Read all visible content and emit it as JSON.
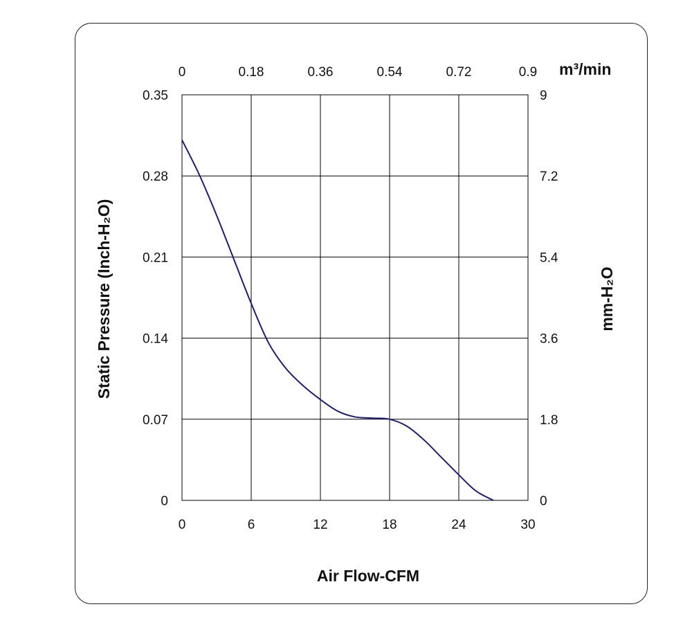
{
  "chart_data": {
    "type": "line",
    "title": "",
    "xlabel": "Air Flow-CFM",
    "ylabel": "Static Pressure (Inch-H₂O)",
    "y2label": "mm-H₂O",
    "x2label": "m³/min",
    "xlim": [
      0,
      30
    ],
    "ylim": [
      0,
      0.35
    ],
    "x2lim": [
      0,
      0.9
    ],
    "y2lim": [
      0,
      9
    ],
    "grid": true,
    "x_ticks": [
      "0",
      "6",
      "12",
      "18",
      "24",
      "30"
    ],
    "y_ticks": [
      "0",
      "0.07",
      "0.14",
      "0.21",
      "0.28",
      "0.35"
    ],
    "x2_ticks": [
      "0",
      "0.18",
      "0.36",
      "0.54",
      "0.72",
      "0.9"
    ],
    "y2_ticks": [
      "0",
      "1.8",
      "3.6",
      "5.4",
      "7.2",
      "9"
    ],
    "series": [
      {
        "name": "Static Pressure",
        "color": "#1c1c7a",
        "x": [
          0,
          1.5,
          3,
          4.5,
          6,
          7.5,
          9,
          10.5,
          12,
          13.5,
          15,
          16.5,
          18,
          19.5,
          21,
          22.5,
          24,
          25.5,
          27
        ],
        "y": [
          0.311,
          0.281,
          0.246,
          0.208,
          0.17,
          0.136,
          0.114,
          0.099,
          0.087,
          0.077,
          0.072,
          0.071,
          0.07,
          0.064,
          0.052,
          0.037,
          0.022,
          0.008,
          0
        ]
      }
    ]
  }
}
